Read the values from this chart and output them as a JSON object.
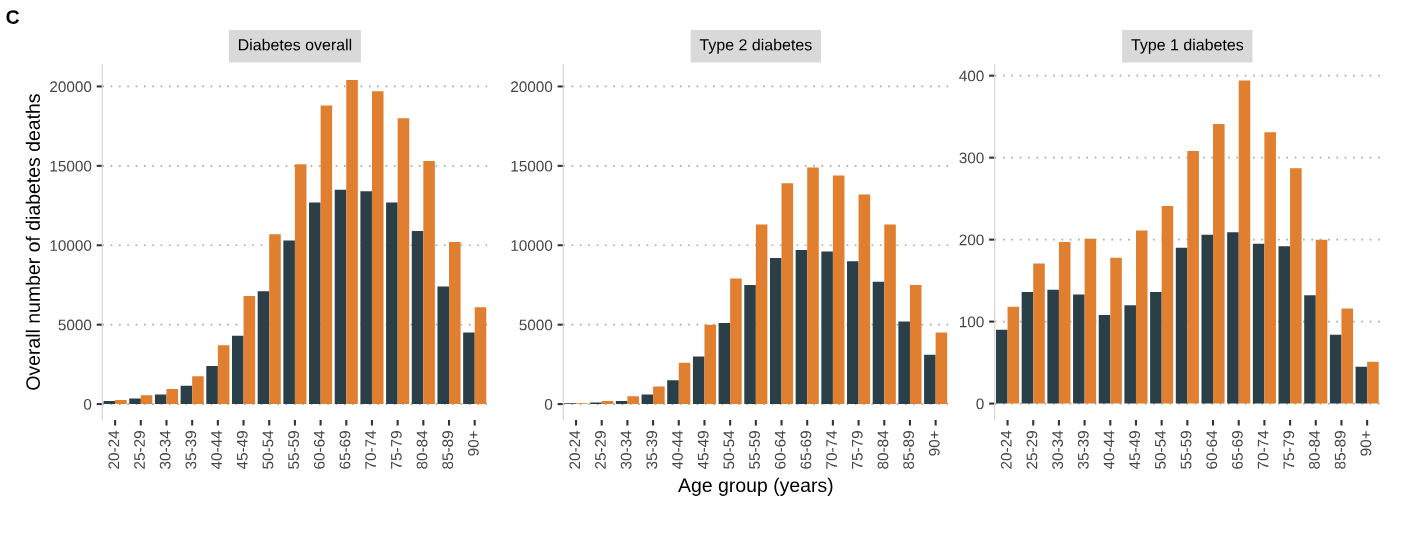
{
  "chart_data": [
    {
      "type": "bar",
      "title": "Diabetes overall",
      "ylabel": "Overall number of diabetes deaths",
      "annotations": [
        "C"
      ],
      "categories": [
        "20-24",
        "25-29",
        "30-34",
        "35-39",
        "40-44",
        "45-49",
        "50-54",
        "55-59",
        "60-64",
        "65-69",
        "70-74",
        "75-79",
        "80-84",
        "85-89",
        "90+"
      ],
      "series": [
        {
          "color": "#2a3f47",
          "values": [
            200,
            350,
            600,
            1150,
            2400,
            4300,
            7100,
            10300,
            12700,
            13500,
            13400,
            12700,
            10900,
            7400,
            4500
          ]
        },
        {
          "color": "#e07f30",
          "values": [
            250,
            550,
            950,
            1750,
            3700,
            6800,
            10700,
            15100,
            18800,
            20400,
            19700,
            18000,
            15300,
            10200,
            6100
          ]
        }
      ],
      "ylim": [
        -1000,
        21400
      ],
      "yticks": [
        0,
        5000,
        10000,
        15000,
        20000
      ],
      "grid": "y"
    },
    {
      "type": "bar",
      "title": "Type 2 diabetes",
      "xlabel": "Age group (years)",
      "categories": [
        "20-24",
        "25-29",
        "30-34",
        "35-39",
        "40-44",
        "45-49",
        "50-54",
        "55-59",
        "60-64",
        "65-69",
        "70-74",
        "75-79",
        "80-84",
        "85-89",
        "90+"
      ],
      "series": [
        {
          "color": "#2a3f47",
          "values": [
            50,
            100,
            200,
            600,
            1500,
            3000,
            5100,
            7500,
            9200,
            9700,
            9600,
            9000,
            7700,
            5200,
            3100
          ]
        },
        {
          "color": "#e07f30",
          "values": [
            50,
            200,
            500,
            1100,
            2600,
            5000,
            7900,
            11300,
            13900,
            14900,
            14400,
            13200,
            11300,
            7500,
            4500
          ]
        }
      ],
      "ylim": [
        -1000,
        21400
      ],
      "yticks": [
        0,
        5000,
        10000,
        15000,
        20000
      ],
      "grid": "y"
    },
    {
      "type": "bar",
      "title": "Type 1 diabetes",
      "categories": [
        "20-24",
        "25-29",
        "30-34",
        "35-39",
        "40-44",
        "45-49",
        "50-54",
        "55-59",
        "60-64",
        "65-69",
        "70-74",
        "75-79",
        "80-84",
        "85-89",
        "90+"
      ],
      "series": [
        {
          "color": "#2a3f47",
          "values": [
            90,
            136,
            139,
            133,
            108,
            120,
            136,
            190,
            206,
            209,
            195,
            192,
            132,
            84,
            45
          ]
        },
        {
          "color": "#e07f30",
          "values": [
            118,
            171,
            197,
            201,
            178,
            211,
            241,
            308,
            341,
            394,
            331,
            287,
            200,
            116,
            51
          ]
        }
      ],
      "ylim": [
        -20,
        414
      ],
      "yticks": [
        0,
        100,
        200,
        300,
        400
      ],
      "grid": "y"
    }
  ]
}
